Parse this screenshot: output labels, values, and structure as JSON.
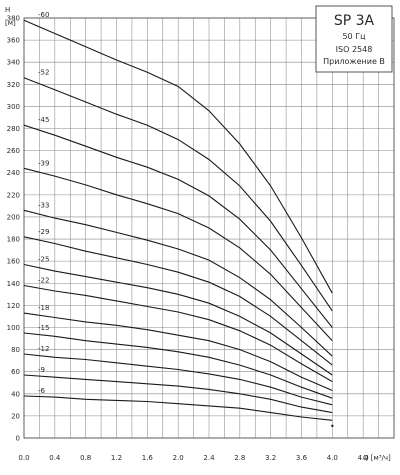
{
  "chart_data": {
    "type": "line",
    "title_box": {
      "title": "SP 3A",
      "frequency": "50 Гц",
      "standard": "ISO 2548",
      "annex": "Приложение В"
    },
    "y_axis": {
      "symbol": "H",
      "unit": "[м]",
      "ylim": [
        0,
        380
      ],
      "ticks": [
        0,
        20,
        40,
        60,
        80,
        100,
        120,
        140,
        160,
        180,
        200,
        220,
        240,
        260,
        280,
        300,
        320,
        340,
        360,
        380
      ]
    },
    "x_axis": {
      "label": "Q [м³/ч]",
      "xlim": [
        0,
        4.8
      ],
      "ticks": [
        "0.0",
        "0.4",
        "0.8",
        "1.2",
        "1.6",
        "2.0",
        "2.4",
        "2.8",
        "3.2",
        "3.6",
        "4.0",
        "4.4"
      ],
      "tick_values": [
        0,
        0.4,
        0.8,
        1.2,
        1.6,
        2.0,
        2.4,
        2.8,
        3.2,
        3.6,
        4.0,
        4.4
      ]
    },
    "grid": true,
    "x": [
      0,
      0.4,
      0.8,
      1.2,
      1.6,
      2.0,
      2.4,
      2.8,
      3.2,
      3.6,
      4.0,
      4.4
    ],
    "series": [
      {
        "name": "-60",
        "values": [
          378,
          366,
          354,
          342,
          331,
          318,
          296,
          266,
          228,
          181,
          131,
          null
        ]
      },
      {
        "name": "-52",
        "values": [
          326,
          315,
          304,
          293,
          283,
          270,
          252,
          228,
          196,
          156,
          115,
          null
        ]
      },
      {
        "name": "-45",
        "values": [
          283,
          274,
          264,
          254,
          245,
          234,
          219,
          198,
          170,
          135,
          100,
          null
        ]
      },
      {
        "name": "-39",
        "values": [
          244,
          237,
          229,
          220,
          212,
          203,
          190,
          172,
          148,
          118,
          88,
          null
        ]
      },
      {
        "name": "-33",
        "values": [
          206,
          199,
          193,
          186,
          179,
          171,
          161,
          145,
          125,
          100,
          74,
          null
        ]
      },
      {
        "name": "-29",
        "values": [
          182,
          176,
          169,
          163,
          157,
          150,
          141,
          128,
          110,
          88,
          66,
          null
        ]
      },
      {
        "name": "-25",
        "values": [
          157,
          151,
          146,
          141,
          136,
          130,
          122,
          110,
          95,
          76,
          57,
          null
        ]
      },
      {
        "name": "-22",
        "values": [
          138,
          133,
          129,
          124,
          119,
          114,
          107,
          97,
          84,
          67,
          51,
          null
        ]
      },
      {
        "name": "-18",
        "values": [
          113,
          109,
          105,
          102,
          98,
          93,
          88,
          80,
          69,
          55,
          43,
          null
        ]
      },
      {
        "name": "-15",
        "values": [
          95,
          92,
          88,
          85,
          82,
          78,
          73,
          66,
          57,
          46,
          36,
          null
        ]
      },
      {
        "name": "-12",
        "values": [
          76,
          73,
          71,
          68,
          65,
          62,
          58,
          53,
          46,
          37,
          30,
          null
        ]
      },
      {
        "name": "-9",
        "values": [
          57,
          55,
          53,
          51,
          49,
          47,
          44,
          40,
          35,
          28,
          23,
          null
        ]
      },
      {
        "name": "-6",
        "values": [
          38,
          37,
          35,
          34,
          33,
          31,
          29,
          27,
          23,
          19,
          16,
          null
        ]
      },
      {
        "name": "",
        "values": [
          null,
          null,
          null,
          null,
          null,
          null,
          null,
          null,
          null,
          null,
          11,
          null
        ]
      }
    ]
  }
}
